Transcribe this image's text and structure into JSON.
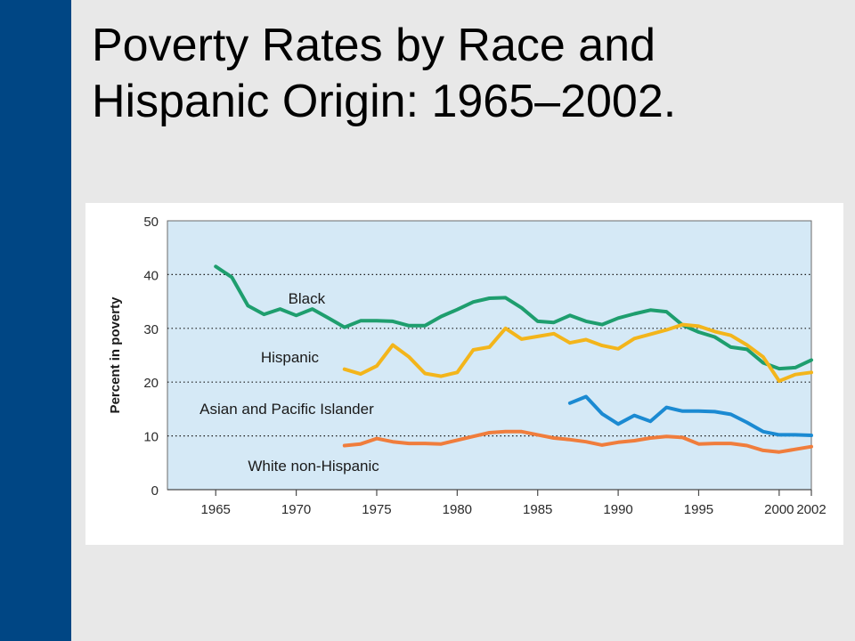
{
  "slide": {
    "title_line1": "Poverty Rates by Race and",
    "title_line2": "Hispanic Origin: 1965–2002.",
    "sidebar_color": "#004684"
  },
  "chart_data": {
    "type": "line",
    "title": "",
    "xlabel": "",
    "ylabel": "Percent in poverty",
    "xlim": [
      1962,
      2002
    ],
    "ylim": [
      0,
      50
    ],
    "x_ticks": [
      1965,
      1970,
      1975,
      1980,
      1985,
      1990,
      1995,
      2000,
      2002
    ],
    "y_ticks": [
      0,
      10,
      20,
      30,
      40,
      50
    ],
    "grid": "horizontal dotted",
    "plot_background": "#d5e9f6",
    "series": [
      {
        "name": "Black",
        "color": "#1e9e6e",
        "points": [
          [
            1965,
            41.5
          ],
          [
            1966,
            39.5
          ],
          [
            1967,
            34.2
          ],
          [
            1968,
            32.6
          ],
          [
            1969,
            33.6
          ],
          [
            1970,
            32.4
          ],
          [
            1971,
            33.6
          ],
          [
            1972,
            31.9
          ],
          [
            1973,
            30.2
          ],
          [
            1974,
            31.4
          ],
          [
            1975,
            31.4
          ],
          [
            1976,
            31.3
          ],
          [
            1977,
            30.5
          ],
          [
            1978,
            30.5
          ],
          [
            1979,
            32.2
          ],
          [
            1980,
            33.5
          ],
          [
            1981,
            34.9
          ],
          [
            1982,
            35.6
          ],
          [
            1983,
            35.7
          ],
          [
            1984,
            33.8
          ],
          [
            1985,
            31.3
          ],
          [
            1986,
            31.1
          ],
          [
            1987,
            32.4
          ],
          [
            1988,
            31.3
          ],
          [
            1989,
            30.7
          ],
          [
            1990,
            31.9
          ],
          [
            1991,
            32.7
          ],
          [
            1992,
            33.4
          ],
          [
            1993,
            33.1
          ],
          [
            1994,
            30.6
          ],
          [
            1995,
            29.3
          ],
          [
            1996,
            28.4
          ],
          [
            1997,
            26.5
          ],
          [
            1998,
            26.1
          ],
          [
            1999,
            23.6
          ],
          [
            2000,
            22.5
          ],
          [
            2001,
            22.7
          ],
          [
            2002,
            24.1
          ]
        ]
      },
      {
        "name": "Hispanic",
        "color": "#f3b51b",
        "points": [
          [
            1973,
            22.4
          ],
          [
            1974,
            21.5
          ],
          [
            1975,
            23.0
          ],
          [
            1976,
            26.9
          ],
          [
            1977,
            24.7
          ],
          [
            1978,
            21.6
          ],
          [
            1979,
            21.1
          ],
          [
            1980,
            21.8
          ],
          [
            1981,
            26.0
          ],
          [
            1982,
            26.5
          ],
          [
            1983,
            30.0
          ],
          [
            1984,
            28.0
          ],
          [
            1985,
            28.5
          ],
          [
            1986,
            29.0
          ],
          [
            1987,
            27.3
          ],
          [
            1988,
            27.9
          ],
          [
            1989,
            26.8
          ],
          [
            1990,
            26.2
          ],
          [
            1991,
            28.1
          ],
          [
            1992,
            28.9
          ],
          [
            1993,
            29.7
          ],
          [
            1994,
            30.7
          ],
          [
            1995,
            30.4
          ],
          [
            1996,
            29.4
          ],
          [
            1997,
            28.7
          ],
          [
            1998,
            26.9
          ],
          [
            1999,
            24.7
          ],
          [
            2000,
            20.2
          ],
          [
            2001,
            21.4
          ],
          [
            2002,
            21.8
          ]
        ]
      },
      {
        "name": "Asian and Pacific Islander",
        "color": "#1b8ad2",
        "points": [
          [
            1987,
            16.1
          ],
          [
            1988,
            17.3
          ],
          [
            1989,
            14.1
          ],
          [
            1990,
            12.2
          ],
          [
            1991,
            13.8
          ],
          [
            1992,
            12.7
          ],
          [
            1993,
            15.3
          ],
          [
            1994,
            14.6
          ],
          [
            1995,
            14.6
          ],
          [
            1996,
            14.5
          ],
          [
            1997,
            14.0
          ],
          [
            1998,
            12.5
          ],
          [
            1999,
            10.8
          ],
          [
            2000,
            10.2
          ],
          [
            2001,
            10.2
          ],
          [
            2002,
            10.1
          ]
        ]
      },
      {
        "name": "White non-Hispanic",
        "color": "#f07d3c",
        "points": [
          [
            1973,
            8.2
          ],
          [
            1974,
            8.5
          ],
          [
            1975,
            9.5
          ],
          [
            1976,
            8.9
          ],
          [
            1977,
            8.6
          ],
          [
            1978,
            8.6
          ],
          [
            1979,
            8.5
          ],
          [
            1980,
            9.2
          ],
          [
            1981,
            9.9
          ],
          [
            1982,
            10.6
          ],
          [
            1983,
            10.8
          ],
          [
            1984,
            10.8
          ],
          [
            1985,
            10.2
          ],
          [
            1986,
            9.6
          ],
          [
            1987,
            9.3
          ],
          [
            1988,
            8.9
          ],
          [
            1989,
            8.3
          ],
          [
            1990,
            8.8
          ],
          [
            1991,
            9.1
          ],
          [
            1992,
            9.6
          ],
          [
            1993,
            9.9
          ],
          [
            1994,
            9.7
          ],
          [
            1995,
            8.5
          ],
          [
            1996,
            8.6
          ],
          [
            1997,
            8.6
          ],
          [
            1998,
            8.2
          ],
          [
            1999,
            7.3
          ],
          [
            2000,
            7.0
          ],
          [
            2001,
            7.5
          ],
          [
            2002,
            8.0
          ]
        ]
      }
    ],
    "annotations": [
      {
        "text": "Black",
        "x": 1969.5,
        "y": 35.6
      },
      {
        "text": "Hispanic",
        "x": 1967.8,
        "y": 24.7
      },
      {
        "text": "Asian and Pacific Islander",
        "x": 1964.0,
        "y": 15.1
      },
      {
        "text": "White non-Hispanic",
        "x": 1967.0,
        "y": 4.5
      }
    ]
  }
}
